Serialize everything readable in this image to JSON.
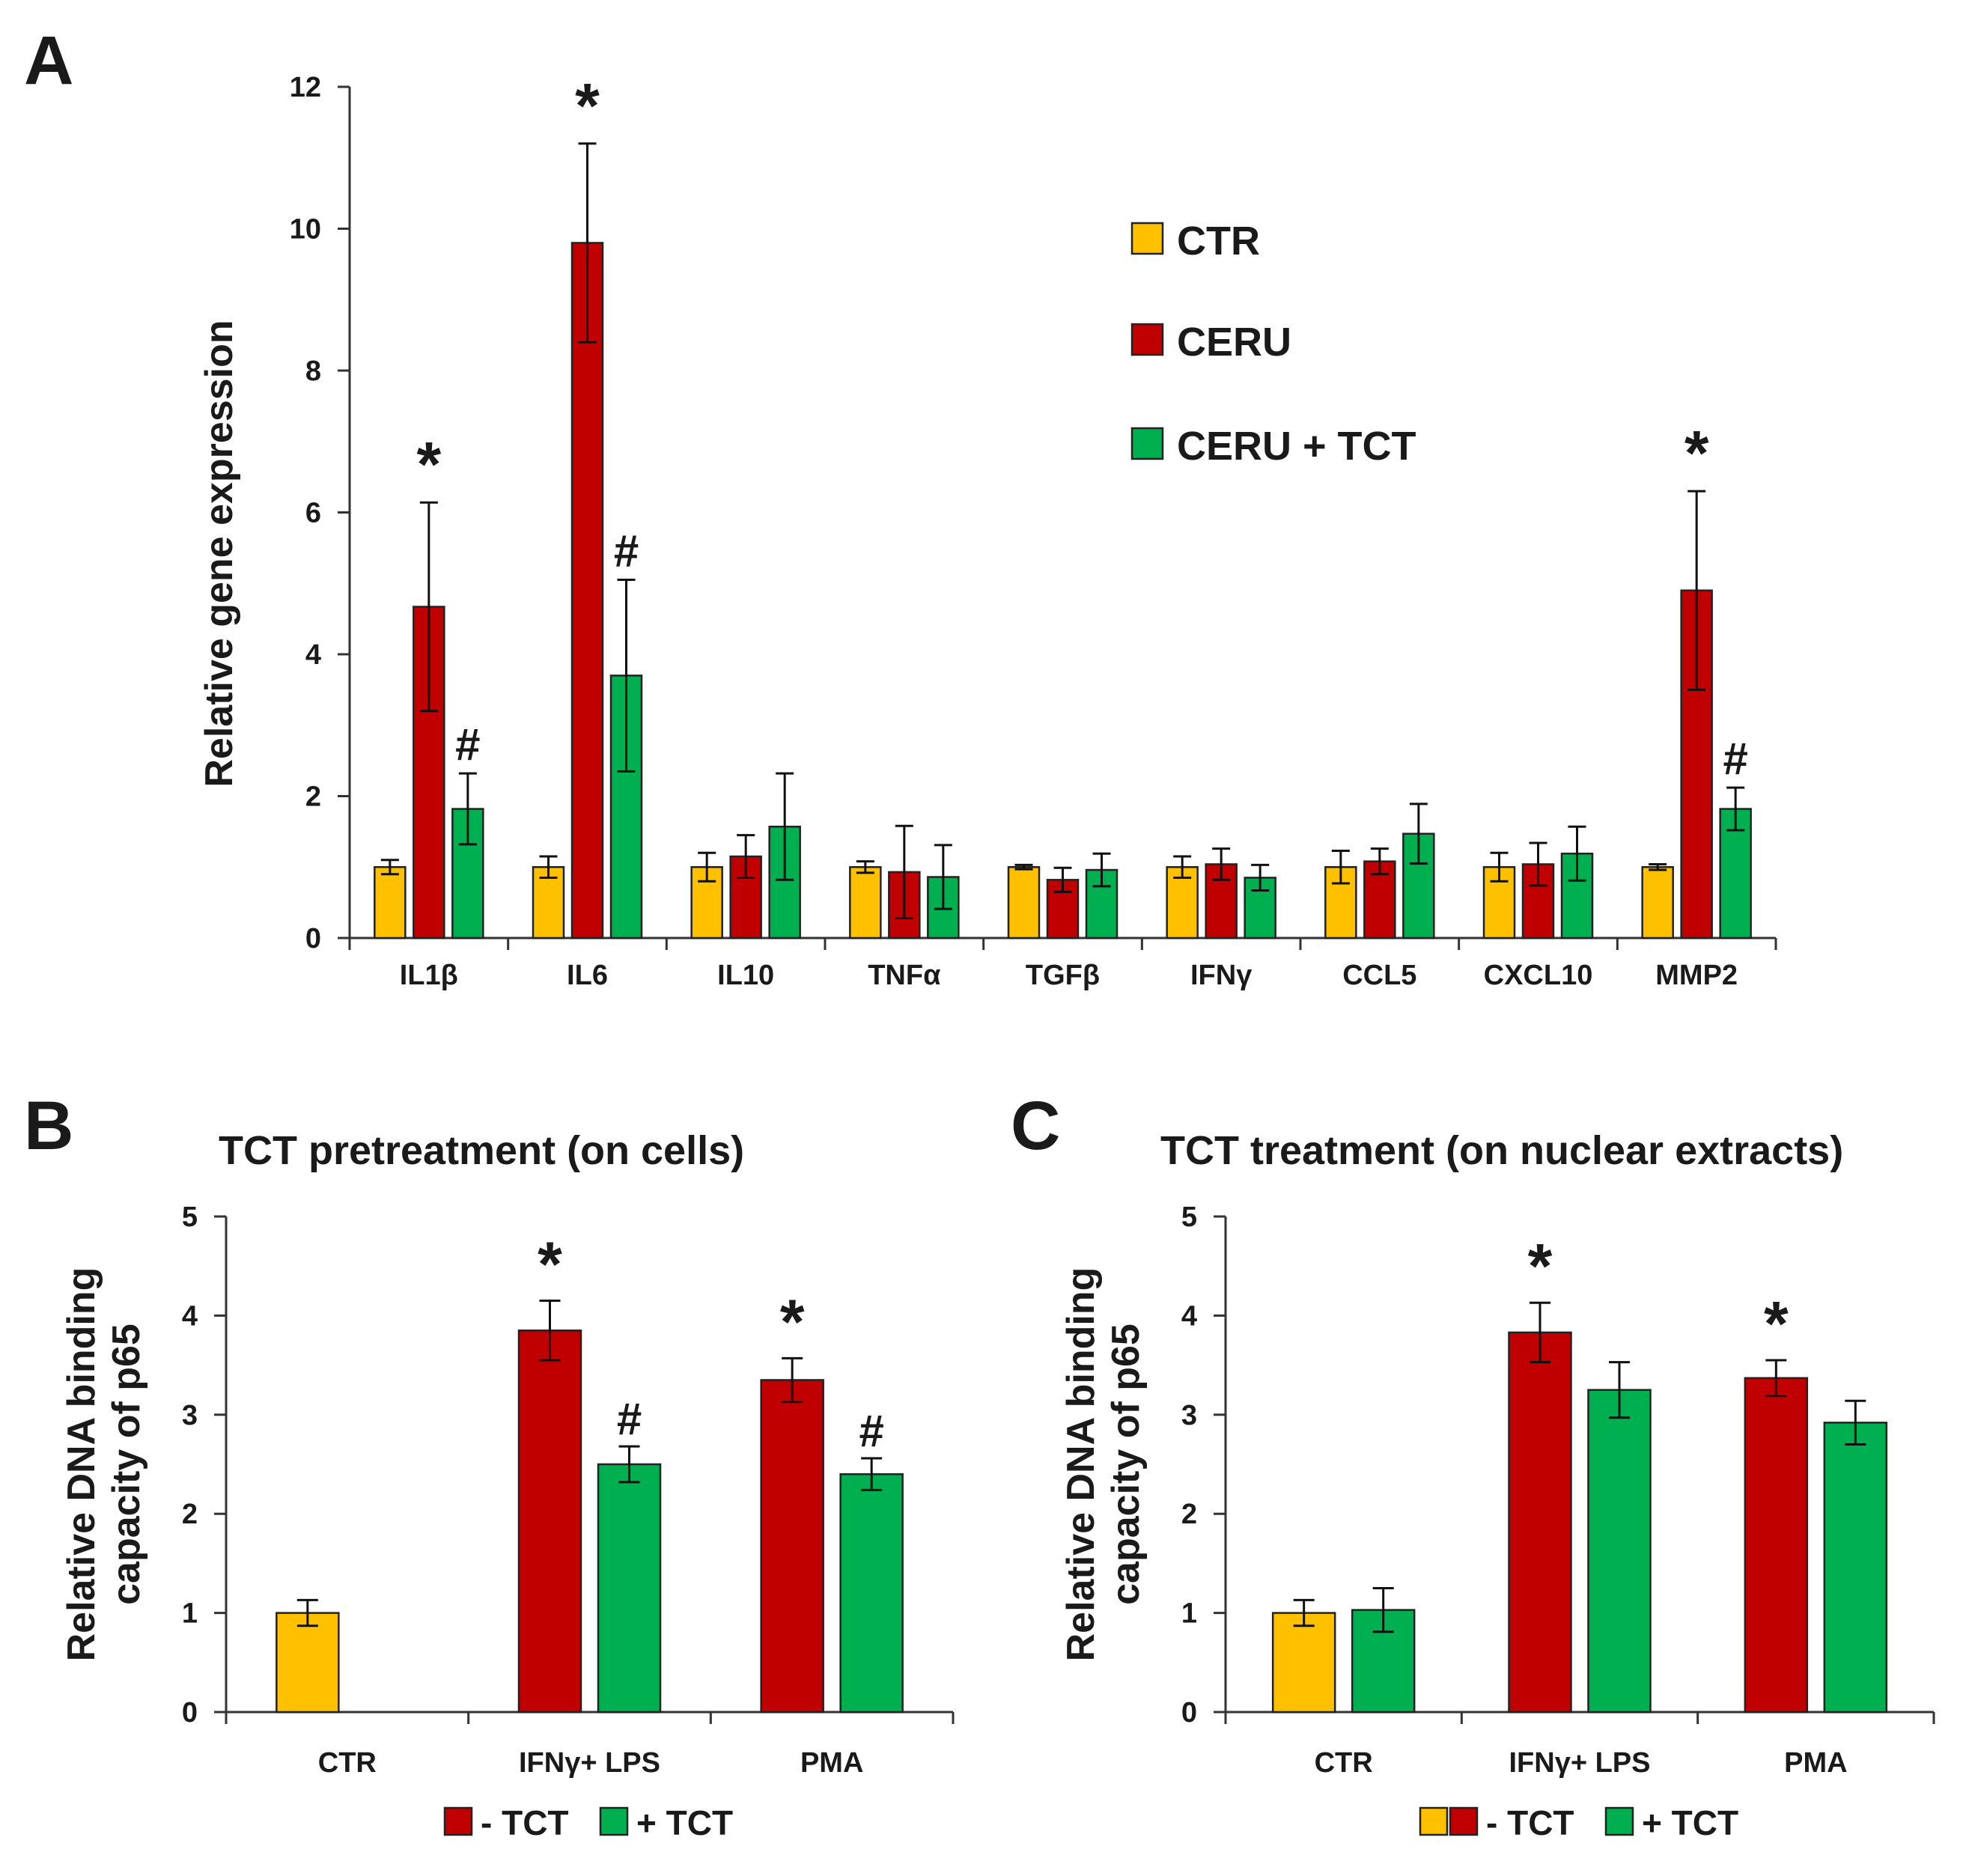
{
  "colors": {
    "CTR": "#FFC000",
    "CERU": "#C00000",
    "CERU + TCT": "#00B050",
    "- TCT": "#C00000",
    "+ TCT": "#00B050"
  },
  "chart_data": [
    {
      "panel": "A",
      "type": "bar",
      "title": "",
      "xlabel": "",
      "ylabel": "Relative gene expression",
      "ylim": [
        0,
        12
      ],
      "yticks": [
        0,
        2,
        4,
        6,
        8,
        10,
        12
      ],
      "categories": [
        "IL1β",
        "IL6",
        "IL10",
        "TNFα",
        "TGFβ",
        "IFNγ",
        "CCL5",
        "CXCL10",
        "MMP2"
      ],
      "legend": [
        "CTR",
        "CERU",
        "CERU + TCT"
      ],
      "legend_position": "top-right",
      "series": [
        {
          "name": "CTR",
          "values": [
            1.0,
            1.0,
            1.0,
            1.0,
            1.0,
            1.0,
            1.0,
            1.0,
            1.0
          ],
          "errors": [
            0.1,
            0.15,
            0.2,
            0.08,
            0.03,
            0.15,
            0.23,
            0.2,
            0.04
          ]
        },
        {
          "name": "CERU",
          "values": [
            4.67,
            9.8,
            1.15,
            0.93,
            0.82,
            1.04,
            1.08,
            1.04,
            4.9
          ],
          "errors": [
            1.47,
            1.4,
            0.3,
            0.65,
            0.17,
            0.22,
            0.18,
            0.3,
            1.4
          ]
        },
        {
          "name": "CERU + TCT",
          "values": [
            1.82,
            3.7,
            1.57,
            0.86,
            0.96,
            0.85,
            1.47,
            1.19,
            1.82
          ],
          "errors": [
            0.5,
            1.35,
            0.75,
            0.45,
            0.23,
            0.18,
            0.42,
            0.38,
            0.3
          ]
        }
      ],
      "annotations": [
        {
          "text": "*",
          "category": "IL1β",
          "series": "CERU"
        },
        {
          "text": "#",
          "category": "IL1β",
          "series": "CERU + TCT"
        },
        {
          "text": "*",
          "category": "IL6",
          "series": "CERU"
        },
        {
          "text": "#",
          "category": "IL6",
          "series": "CERU + TCT"
        },
        {
          "text": "*",
          "category": "MMP2",
          "series": "CERU"
        },
        {
          "text": "#",
          "category": "MMP2",
          "series": "CERU + TCT"
        }
      ]
    },
    {
      "panel": "B",
      "type": "bar",
      "title": "TCT pretreatment (on cells)",
      "xlabel": "",
      "ylabel": "Relative DNA binding capacity of p65",
      "ylim": [
        0,
        5
      ],
      "yticks": [
        0,
        1,
        2,
        3,
        4,
        5
      ],
      "categories": [
        "CTR",
        "IFNγ+ LPS",
        "PMA"
      ],
      "legend": [
        "- TCT",
        "+ TCT"
      ],
      "legend_position": "bottom",
      "bars": [
        {
          "category": "CTR",
          "slot": 0,
          "series": "CTR",
          "value": 1.0,
          "error": 0.13
        },
        {
          "category": "IFNγ+ LPS",
          "slot": 0,
          "series": "- TCT",
          "value": 3.85,
          "error": 0.3
        },
        {
          "category": "IFNγ+ LPS",
          "slot": 1,
          "series": "+ TCT",
          "value": 2.5,
          "error": 0.18
        },
        {
          "category": "PMA",
          "slot": 0,
          "series": "- TCT",
          "value": 3.35,
          "error": 0.22
        },
        {
          "category": "PMA",
          "slot": 1,
          "series": "+ TCT",
          "value": 2.4,
          "error": 0.16
        }
      ],
      "annotations": [
        {
          "text": "*",
          "category": "IFNγ+ LPS",
          "slot": 0
        },
        {
          "text": "#",
          "category": "IFNγ+ LPS",
          "slot": 1
        },
        {
          "text": "*",
          "category": "PMA",
          "slot": 0
        },
        {
          "text": "#",
          "category": "PMA",
          "slot": 1
        }
      ]
    },
    {
      "panel": "C",
      "type": "bar",
      "title": "TCT treatment (on nuclear extracts)",
      "xlabel": "",
      "ylabel": "Relative DNA binding capacity of p65",
      "ylim": [
        0,
        5
      ],
      "yticks": [
        0,
        1,
        2,
        3,
        4,
        5
      ],
      "categories": [
        "CTR",
        "IFNγ+ LPS",
        "PMA"
      ],
      "legend": [
        "- TCT",
        "+ TCT"
      ],
      "legend_position": "bottom",
      "bars": [
        {
          "category": "CTR",
          "slot": 0,
          "series": "CTR",
          "value": 1.0,
          "error": 0.13
        },
        {
          "category": "CTR",
          "slot": 1,
          "series": "+ TCT",
          "value": 1.03,
          "error": 0.22
        },
        {
          "category": "IFNγ+ LPS",
          "slot": 0,
          "series": "- TCT",
          "value": 3.83,
          "error": 0.3
        },
        {
          "category": "IFNγ+ LPS",
          "slot": 1,
          "series": "+ TCT",
          "value": 3.25,
          "error": 0.28
        },
        {
          "category": "PMA",
          "slot": 0,
          "series": "- TCT",
          "value": 3.37,
          "error": 0.18
        },
        {
          "category": "PMA",
          "slot": 1,
          "series": "+ TCT",
          "value": 2.92,
          "error": 0.22
        }
      ],
      "annotations": [
        {
          "text": "*",
          "category": "IFNγ+ LPS",
          "slot": 0
        },
        {
          "text": "*",
          "category": "PMA",
          "slot": 0
        }
      ]
    }
  ]
}
